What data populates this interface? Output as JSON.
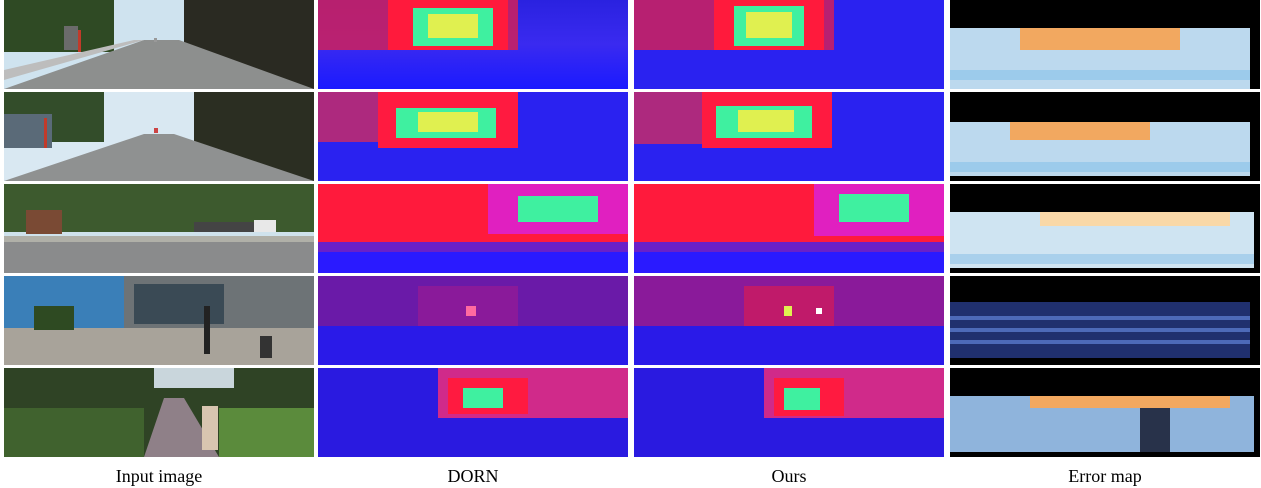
{
  "figure": {
    "columns": [
      {
        "key": "input",
        "caption": "Input image"
      },
      {
        "key": "dorn",
        "caption": "DORN"
      },
      {
        "key": "ours",
        "caption": "Ours"
      },
      {
        "key": "error",
        "caption": "Error map"
      }
    ],
    "rows": 5
  }
}
